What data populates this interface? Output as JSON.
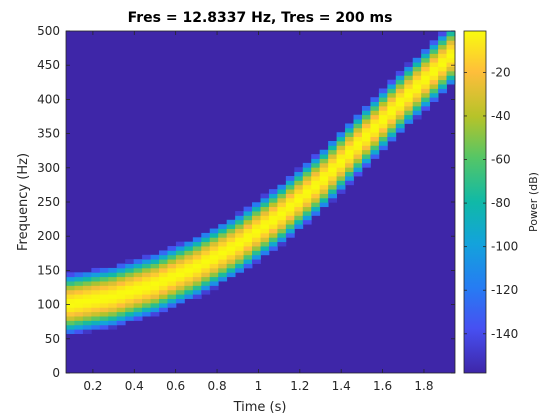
{
  "chart_data": {
    "type": "heatmap",
    "title": "Fres = 12.8337 Hz, Tres = 200 ms",
    "xlabel": "Time (s)",
    "ylabel": "Frequency (Hz)",
    "colorbar_label": "Power (dB)",
    "xlim": [
      0.07,
      1.95
    ],
    "ylim": [
      0,
      500
    ],
    "x_ticks": [
      0.2,
      0.4,
      0.6,
      0.8,
      1,
      1.2,
      1.4,
      1.6,
      1.8
    ],
    "x_tick_labels": [
      "0.2",
      "0.4",
      "0.6",
      "0.8",
      "1",
      "1.2",
      "1.4",
      "1.6",
      "1.8"
    ],
    "y_ticks": [
      0,
      50,
      100,
      150,
      200,
      250,
      300,
      350,
      400,
      450,
      500
    ],
    "y_tick_labels": [
      "0",
      "50",
      "100",
      "150",
      "200",
      "250",
      "300",
      "350",
      "400",
      "450",
      "500"
    ],
    "clim": [
      -158,
      -1
    ],
    "colorbar_ticks": [
      -20,
      -40,
      -60,
      -80,
      -100,
      -120,
      -140
    ],
    "colorbar_tick_labels": [
      "-20",
      "-40",
      "-60",
      "-80",
      "-100",
      "-120",
      "-140"
    ],
    "colormap": "parula",
    "ridge": {
      "description_units": "center frequency (Hz) over time (s)",
      "time": [
        0.07,
        0.3,
        0.5,
        0.7,
        0.9,
        1.1,
        1.3,
        1.5,
        1.7,
        1.95
      ],
      "center_frequency": [
        100,
        112,
        130,
        155,
        188,
        230,
        280,
        340,
        400,
        470
      ]
    },
    "grid": false,
    "legend": "none"
  }
}
